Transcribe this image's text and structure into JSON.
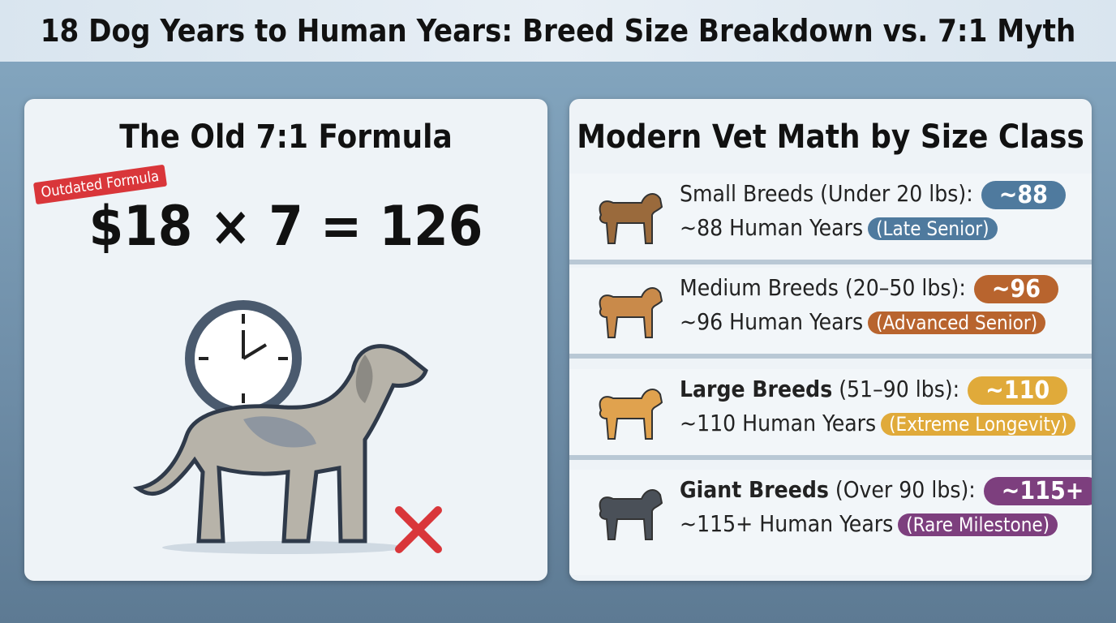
{
  "title": "18 Dog Years to Human Years: Breed Size Breakdown vs. 7:1 Myth",
  "old_formula": {
    "heading": "The Old 7:1 Formula",
    "stamp": "Outdated Formula",
    "formula": "$18 × 7 = 126"
  },
  "modern": {
    "heading": "Modern Vet Math by Size Class",
    "rows": [
      {
        "name": "Small Breeds",
        "detail": "(Under 20 lbs):",
        "badge": "~88",
        "years": "~88 Human Years",
        "tag": "(Late Senior)",
        "color": "#4f7a9e",
        "dog_color": "#9a6a3c"
      },
      {
        "name": "Medium Breeds",
        "detail": "(20–50 lbs):",
        "badge": "~96",
        "years": "~96 Human Years",
        "tag": "(Advanced Senior)",
        "color": "#b8642e",
        "dog_color": "#c98a4a"
      },
      {
        "name": "Large Breeds",
        "detail": "(51–90 lbs):",
        "badge": "~110",
        "years": "~110 Human Years",
        "tag": "(Extreme Longevity)",
        "color": "#e0aa3a",
        "dog_color": "#e0a24e"
      },
      {
        "name": "Giant Breeds",
        "detail": "(Over 90 lbs):",
        "badge": "~115+",
        "years": "~115+ Human Years",
        "tag": "(Rare Milestone)",
        "color": "#7d3f7e",
        "dog_color": "#4a5058"
      }
    ]
  }
}
